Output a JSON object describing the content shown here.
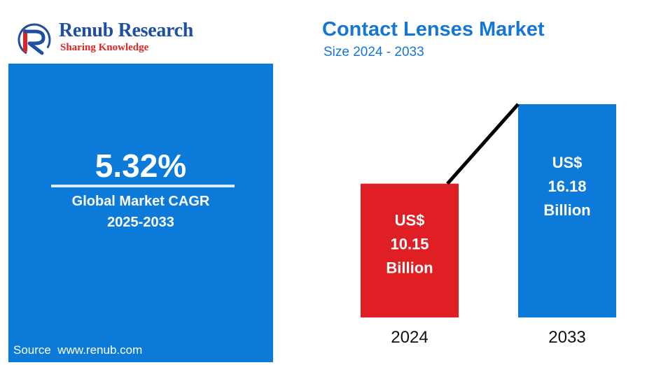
{
  "brand": {
    "name": "Renub Research",
    "tagline": "Sharing Knowledge",
    "colors": {
      "name": "#1f4fa0",
      "tagline": "#e02424"
    }
  },
  "cagr_panel": {
    "value": "5.32%",
    "label": "Global Market CAGR",
    "period": "2025-2033",
    "source": "Source  www.renub.com",
    "color": "#0b7ad8"
  },
  "chart_data": {
    "type": "bar",
    "title": "Contact Lenses Market",
    "subtitle": "Size 2024 - 2033",
    "categories": [
      "2024",
      "2033"
    ],
    "values": [
      10.15,
      16.18
    ],
    "bar_labels": [
      [
        "US$",
        "10.15",
        "Billion"
      ],
      [
        "US$",
        "16.18",
        "Billion"
      ]
    ],
    "colors": [
      "#e01f25",
      "#0b7ad8"
    ],
    "xlabel": "",
    "ylabel": "",
    "connector_line": true,
    "grid": false,
    "legend": "none"
  }
}
